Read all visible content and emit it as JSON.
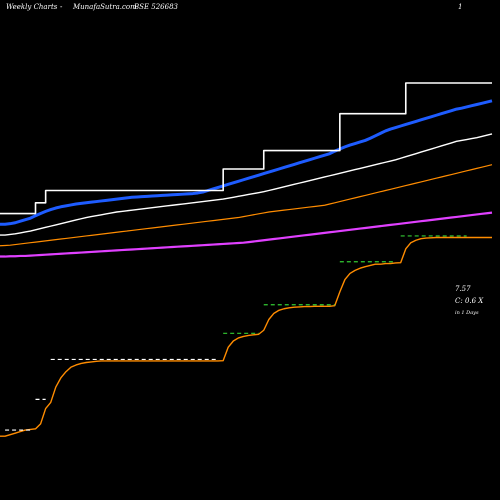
{
  "header": {
    "left": "Weekly Charts",
    "middle": "MunafaSutra.com",
    "right": "BSE 526683",
    "far_right": "1"
  },
  "side_info": {
    "price": "7.57",
    "line2": "C: 0.6 X",
    "line3": "in 1 Days"
  },
  "colors": {
    "background": "#000000",
    "price_line": "#ff8c00",
    "ma_blue": "#1e5cff",
    "ma_white": "#ffffff",
    "ma_orange": "#ff8c00",
    "ma_magenta": "#e040ff",
    "support_dashes": [
      "#ffffff",
      "#33cc33"
    ]
  },
  "chart_data": {
    "type": "line",
    "x": [
      0,
      1,
      2,
      3,
      4,
      5,
      6,
      7,
      8,
      9,
      10,
      11,
      12,
      13,
      14,
      15,
      16,
      17,
      18,
      19,
      20,
      21,
      22,
      23,
      24,
      25,
      26,
      27,
      28,
      29,
      30,
      31,
      32,
      33,
      34,
      35,
      36,
      37,
      38,
      39,
      40,
      41,
      42,
      43,
      44,
      45,
      46,
      47,
      48,
      49,
      50,
      51,
      52,
      53,
      54,
      55,
      56,
      57,
      58,
      59,
      60,
      61,
      62,
      63,
      64,
      65,
      66,
      67,
      68,
      69,
      70,
      71,
      72,
      73,
      74,
      75,
      76,
      77,
      78,
      79,
      80,
      81,
      82,
      83,
      84,
      85,
      86,
      87,
      88,
      89,
      90,
      91,
      92,
      93,
      94,
      95,
      96,
      97
    ],
    "series": [
      {
        "key": "price",
        "color": "#ff8c00",
        "values": [
          1.1,
          1.1,
          1.15,
          1.2,
          1.25,
          1.3,
          1.32,
          1.34,
          1.5,
          2.0,
          2.2,
          2.7,
          3.0,
          3.2,
          3.35,
          3.42,
          3.47,
          3.5,
          3.52,
          3.54,
          3.55,
          3.55,
          3.55,
          3.55,
          3.55,
          3.55,
          3.55,
          3.55,
          3.55,
          3.55,
          3.55,
          3.55,
          3.55,
          3.55,
          3.55,
          3.55,
          3.55,
          3.55,
          3.55,
          3.55,
          3.55,
          3.55,
          3.55,
          3.55,
          3.56,
          4.0,
          4.2,
          4.3,
          4.35,
          4.38,
          4.4,
          4.42,
          4.55,
          4.9,
          5.1,
          5.2,
          5.25,
          5.28,
          5.3,
          5.31,
          5.32,
          5.32,
          5.33,
          5.33,
          5.33,
          5.33,
          5.35,
          5.8,
          6.2,
          6.4,
          6.5,
          6.57,
          6.62,
          6.66,
          6.7,
          6.7,
          6.72,
          6.72,
          6.74,
          6.75,
          7.2,
          7.4,
          7.48,
          7.53,
          7.55,
          7.56,
          7.57,
          7.57,
          7.57,
          7.57,
          7.57,
          7.57,
          7.57,
          7.57,
          7.57,
          7.57,
          7.57,
          7.57
        ]
      },
      {
        "key": "ma_blue",
        "color": "#1e5cff",
        "values": [
          8.0,
          8.0,
          8.02,
          8.05,
          8.1,
          8.15,
          8.2,
          8.28,
          8.35,
          8.42,
          8.48,
          8.53,
          8.57,
          8.6,
          8.63,
          8.66,
          8.68,
          8.7,
          8.72,
          8.74,
          8.76,
          8.78,
          8.8,
          8.82,
          8.84,
          8.86,
          8.88,
          8.89,
          8.9,
          8.91,
          8.92,
          8.93,
          8.94,
          8.95,
          8.96,
          8.97,
          8.98,
          8.99,
          9.0,
          9.02,
          9.05,
          9.1,
          9.15,
          9.2,
          9.25,
          9.3,
          9.35,
          9.4,
          9.45,
          9.5,
          9.55,
          9.6,
          9.65,
          9.7,
          9.75,
          9.8,
          9.85,
          9.9,
          9.95,
          10.0,
          10.05,
          10.1,
          10.15,
          10.2,
          10.25,
          10.3,
          10.38,
          10.45,
          10.52,
          10.58,
          10.63,
          10.68,
          10.73,
          10.8,
          10.88,
          10.96,
          11.04,
          11.1,
          11.15,
          11.2,
          11.25,
          11.3,
          11.35,
          11.4,
          11.45,
          11.5,
          11.55,
          11.6,
          11.65,
          11.7,
          11.75,
          11.78,
          11.82,
          11.86,
          11.9,
          11.94,
          11.98,
          12.02
        ]
      },
      {
        "key": "ma_white",
        "color": "#ffffff",
        "values": [
          7.65,
          7.65,
          7.67,
          7.69,
          7.72,
          7.75,
          7.78,
          7.82,
          7.86,
          7.9,
          7.94,
          7.98,
          8.02,
          8.06,
          8.1,
          8.14,
          8.18,
          8.22,
          8.25,
          8.28,
          8.31,
          8.34,
          8.37,
          8.4,
          8.42,
          8.44,
          8.46,
          8.48,
          8.5,
          8.52,
          8.54,
          8.56,
          8.58,
          8.6,
          8.62,
          8.64,
          8.66,
          8.68,
          8.7,
          8.72,
          8.74,
          8.76,
          8.78,
          8.8,
          8.82,
          8.85,
          8.88,
          8.91,
          8.94,
          8.97,
          9.0,
          9.03,
          9.06,
          9.1,
          9.14,
          9.18,
          9.22,
          9.26,
          9.3,
          9.34,
          9.38,
          9.42,
          9.46,
          9.5,
          9.54,
          9.58,
          9.62,
          9.66,
          9.7,
          9.74,
          9.78,
          9.82,
          9.86,
          9.9,
          9.94,
          9.98,
          10.02,
          10.06,
          10.1,
          10.15,
          10.2,
          10.25,
          10.3,
          10.35,
          10.4,
          10.45,
          10.5,
          10.55,
          10.6,
          10.65,
          10.7,
          10.73,
          10.76,
          10.79,
          10.82,
          10.86,
          10.9,
          10.94
        ]
      },
      {
        "key": "ma_orange",
        "color": "#ff8c00",
        "values": [
          7.3,
          7.31,
          7.32,
          7.34,
          7.36,
          7.38,
          7.4,
          7.42,
          7.44,
          7.46,
          7.48,
          7.5,
          7.52,
          7.54,
          7.56,
          7.58,
          7.6,
          7.62,
          7.64,
          7.66,
          7.68,
          7.7,
          7.72,
          7.74,
          7.76,
          7.78,
          7.8,
          7.82,
          7.84,
          7.86,
          7.88,
          7.9,
          7.92,
          7.94,
          7.96,
          7.98,
          8.0,
          8.02,
          8.04,
          8.06,
          8.08,
          8.1,
          8.12,
          8.14,
          8.16,
          8.18,
          8.2,
          8.22,
          8.25,
          8.28,
          8.31,
          8.34,
          8.37,
          8.4,
          8.42,
          8.44,
          8.46,
          8.48,
          8.5,
          8.52,
          8.54,
          8.56,
          8.58,
          8.6,
          8.62,
          8.66,
          8.7,
          8.74,
          8.78,
          8.82,
          8.86,
          8.9,
          8.94,
          8.98,
          9.02,
          9.06,
          9.1,
          9.14,
          9.18,
          9.22,
          9.26,
          9.3,
          9.34,
          9.38,
          9.42,
          9.46,
          9.5,
          9.54,
          9.58,
          9.62,
          9.66,
          9.7,
          9.74,
          9.78,
          9.82,
          9.86,
          9.9,
          9.94
        ]
      },
      {
        "key": "ma_magenta",
        "color": "#e040ff",
        "values": [
          6.95,
          6.95,
          6.96,
          6.96,
          6.97,
          6.97,
          6.98,
          6.99,
          7.0,
          7.01,
          7.02,
          7.03,
          7.04,
          7.05,
          7.06,
          7.07,
          7.08,
          7.09,
          7.1,
          7.11,
          7.12,
          7.13,
          7.14,
          7.15,
          7.16,
          7.17,
          7.18,
          7.19,
          7.2,
          7.21,
          7.22,
          7.23,
          7.24,
          7.25,
          7.26,
          7.27,
          7.28,
          7.29,
          7.3,
          7.31,
          7.32,
          7.33,
          7.34,
          7.35,
          7.36,
          7.37,
          7.38,
          7.39,
          7.4,
          7.42,
          7.44,
          7.46,
          7.48,
          7.5,
          7.52,
          7.54,
          7.56,
          7.58,
          7.6,
          7.62,
          7.64,
          7.66,
          7.68,
          7.7,
          7.72,
          7.74,
          7.76,
          7.78,
          7.8,
          7.82,
          7.84,
          7.86,
          7.88,
          7.9,
          7.92,
          7.94,
          7.96,
          7.98,
          8.0,
          8.02,
          8.04,
          8.06,
          8.08,
          8.1,
          8.12,
          8.14,
          8.16,
          8.18,
          8.2,
          8.22,
          8.24,
          8.26,
          8.28,
          8.3,
          8.32,
          8.34,
          8.36,
          8.38
        ]
      },
      {
        "key": "ma_white_top",
        "color": "#ffffff",
        "values": [
          8.35,
          8.35,
          8.35,
          8.35,
          8.35,
          8.35,
          8.35,
          8.7,
          8.7,
          9.1,
          9.1,
          9.1,
          9.1,
          9.1,
          9.1,
          9.1,
          9.1,
          9.1,
          9.1,
          9.1,
          9.1,
          9.1,
          9.1,
          9.1,
          9.1,
          9.1,
          9.1,
          9.1,
          9.1,
          9.1,
          9.1,
          9.1,
          9.1,
          9.1,
          9.1,
          9.1,
          9.1,
          9.1,
          9.1,
          9.1,
          9.1,
          9.1,
          9.1,
          9.1,
          9.8,
          9.8,
          9.8,
          9.8,
          9.8,
          9.8,
          9.8,
          9.8,
          10.4,
          10.4,
          10.4,
          10.4,
          10.4,
          10.4,
          10.4,
          10.4,
          10.4,
          10.4,
          10.4,
          10.4,
          10.4,
          10.4,
          10.4,
          11.6,
          11.6,
          11.6,
          11.6,
          11.6,
          11.6,
          11.6,
          11.6,
          11.6,
          11.6,
          11.6,
          11.6,
          11.6,
          12.6,
          12.6,
          12.6,
          12.6,
          12.6,
          12.6,
          12.6,
          12.6,
          12.6,
          12.6,
          12.6,
          12.6,
          12.6,
          12.6,
          12.6,
          12.6,
          12.6,
          12.6
        ]
      }
    ],
    "support_levels": [
      {
        "x0": 1,
        "x1": 6,
        "y": 1.3,
        "color": "#ffffff"
      },
      {
        "x0": 7,
        "x1": 9,
        "y": 2.3,
        "color": "#ffffff"
      },
      {
        "x0": 10,
        "x1": 43,
        "y": 3.6,
        "color": "#ffffff"
      },
      {
        "x0": 44,
        "x1": 51,
        "y": 4.45,
        "color": "#33cc33"
      },
      {
        "x0": 52,
        "x1": 66,
        "y": 5.38,
        "color": "#33cc33"
      },
      {
        "x0": 67,
        "x1": 78,
        "y": 6.78,
        "color": "#33cc33"
      },
      {
        "x0": 79,
        "x1": 92,
        "y": 7.62,
        "color": "#33cc33"
      }
    ],
    "ylim": [
      0,
      14
    ],
    "grid": false,
    "legend": "none"
  }
}
